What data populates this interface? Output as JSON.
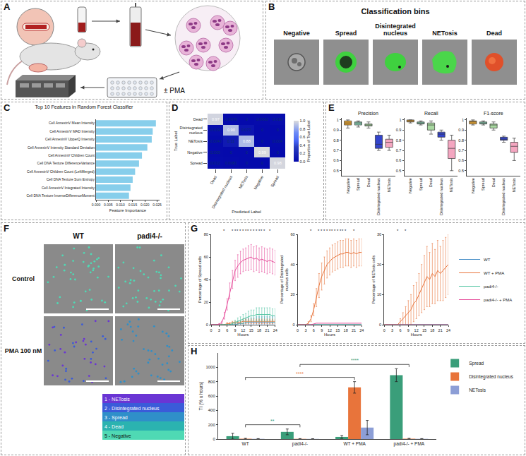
{
  "panel_letters": [
    "A",
    "B",
    "C",
    "D",
    "E",
    "F",
    "G",
    "H"
  ],
  "panel_a": {
    "label": "± PMA"
  },
  "panel_b": {
    "title": "Classification bins",
    "bins": [
      "Negative",
      "Spread",
      "Disintegrated nucleus",
      "NETosis",
      "Dead"
    ]
  },
  "panel_f": {
    "columns": [
      "WT",
      "padi4-/-"
    ],
    "rows": [
      "Control",
      "PMA 100 nM"
    ],
    "legend": [
      {
        "label": "1 - NETosis",
        "color": "#6a35d4"
      },
      {
        "label": "2 - Disintegrated nucleus",
        "color": "#3a5bd9"
      },
      {
        "label": "3 - Spread",
        "color": "#2f8fc9"
      },
      {
        "label": "4 - Dead",
        "color": "#2bb3b0"
      },
      {
        "label": "5 - Negative",
        "color": "#4fd9b4"
      }
    ]
  },
  "chart_data": [
    {
      "type": "bar",
      "orientation": "horizontal",
      "title": "Top 10 Features in Random Forest Classifier",
      "xlabel": "Feature Importance",
      "categories": [
        "Cell AnnexinV Mean Intensity",
        "Cell AnnexinV MAD Intensity",
        "Cell AnnexinV UpperQ Intensity",
        "Cell AnnexinV Intensity Standard Deviation",
        "Cell AnnexinV Children Count",
        "Cell DNA Texture DifferenceVariance",
        "Cell AnnexinV Children Count (LeftMerged)",
        "Cell DNA Texture Sum Entropy",
        "Cell AnnexinV Integrated Intensity",
        "Cell DNA Texture InverseDifferenceMoment"
      ],
      "values": [
        0.0245,
        0.0232,
        0.0228,
        0.021,
        0.0188,
        0.0176,
        0.016,
        0.015,
        0.0141,
        0.0135
      ],
      "color": "#87ceeb",
      "xlim": [
        0,
        0.026
      ],
      "xticks": [
        {
          "value": 0,
          "label": "0.000"
        },
        {
          "value": 0.005,
          "label": "0.005"
        },
        {
          "value": 0.01,
          "label": "0.010"
        },
        {
          "value": 0.015,
          "label": "0.015"
        },
        {
          "value": 0.02,
          "label": "0.020"
        },
        {
          "value": 0.025,
          "label": "0.025"
        }
      ]
    },
    {
      "type": "heatmap",
      "xlabel": "Predicted Label",
      "ylabel": "True Label",
      "categories": [
        "Dead",
        "Disintegrated nucleus",
        "NETosis",
        "Negative",
        "Spread"
      ],
      "cells": [
        [
          0.97,
          0.0079,
          0,
          0.0063,
          0.019
        ],
        [
          0.019,
          0.9,
          0.077,
          0,
          0
        ],
        [
          0.004,
          0.11,
          0.88,
          0,
          0.004
        ],
        [
          0.009,
          0,
          0,
          0.99,
          0
        ],
        [
          0.012,
          0.0081,
          0,
          0,
          0.98
        ]
      ],
      "cell_labels": [
        [
          "0.97",
          "0.0079",
          "0",
          "0.0063",
          "0.019"
        ],
        [
          "0.019",
          "0.90",
          "0.077",
          "0",
          "0"
        ],
        [
          "0.0040",
          "0.11",
          "0.88",
          "0",
          "0.004"
        ],
        [
          "0.009",
          "0",
          "0",
          "0.99",
          "0"
        ],
        [
          "0.012",
          "0.0081",
          "0",
          "0",
          "0.98"
        ]
      ],
      "colorbar": {
        "title": "Proportion of True Label",
        "range": [
          0,
          1
        ],
        "ticks": [
          {
            "value": 0,
            "label": "0.0"
          },
          {
            "value": 0.2,
            "label": "0.2"
          },
          {
            "value": 0.4,
            "label": "0.4"
          },
          {
            "value": 0.6,
            "label": "0.6"
          },
          {
            "value": 0.8,
            "label": "0.8"
          },
          {
            "value": 1,
            "label": "1.0"
          }
        ]
      }
    },
    {
      "type": "box",
      "title": "Precision",
      "categories": [
        "Negative",
        "Spread",
        "Dead",
        "Disintegrated nucleus",
        "NETosis"
      ],
      "colors": [
        "#e0a030",
        "#88ccb0",
        "#a8d8a0",
        "#3344cc",
        "#f4a6c0"
      ],
      "q1": [
        0.95,
        0.95,
        0.94,
        0.72,
        0.73
      ],
      "median": [
        0.97,
        0.97,
        0.95,
        0.76,
        0.78
      ],
      "q3": [
        0.99,
        0.98,
        0.96,
        0.85,
        0.81
      ],
      "lower": [
        0.92,
        0.93,
        0.92,
        0.7,
        0.7
      ],
      "upper": [
        1.0,
        0.99,
        0.98,
        0.88,
        0.85
      ],
      "ylim": [
        0.45,
        1.02
      ],
      "yticks": [
        0.5,
        0.6,
        0.7,
        0.8,
        0.9,
        1.0
      ]
    },
    {
      "type": "box",
      "title": "Recall",
      "categories": [
        "Negative",
        "Spread",
        "Dead",
        "Disintegrated nucleus",
        "NETosis"
      ],
      "colors": [
        "#e0a030",
        "#88ccb0",
        "#a8d8a0",
        "#3344cc",
        "#f4a6c0"
      ],
      "q1": [
        0.98,
        0.96,
        0.9,
        0.83,
        0.62
      ],
      "median": [
        0.99,
        0.97,
        0.95,
        0.86,
        0.72
      ],
      "q3": [
        1.0,
        0.98,
        0.97,
        0.88,
        0.8
      ],
      "lower": [
        0.97,
        0.95,
        0.86,
        0.8,
        0.5
      ],
      "upper": [
        1.0,
        0.99,
        0.99,
        0.9,
        0.85
      ],
      "ylim": [
        0.45,
        1.02
      ],
      "yticks": [
        0.5,
        0.6,
        0.7,
        0.8,
        0.9,
        1.0
      ]
    },
    {
      "type": "box",
      "title": "F1-score",
      "categories": [
        "Negative",
        "Spread",
        "Dead",
        "Disintegrated nucleus",
        "NETosis"
      ],
      "colors": [
        "#e0a030",
        "#88ccb0",
        "#a8d8a0",
        "#3344cc",
        "#f4a6c0"
      ],
      "q1": [
        0.96,
        0.96,
        0.92,
        0.8,
        0.68
      ],
      "median": [
        0.98,
        0.97,
        0.95,
        0.81,
        0.74
      ],
      "q3": [
        0.99,
        0.98,
        0.96,
        0.83,
        0.78
      ],
      "lower": [
        0.95,
        0.95,
        0.9,
        0.78,
        0.6
      ],
      "upper": [
        1.0,
        0.99,
        0.98,
        0.84,
        0.82
      ],
      "ylim": [
        0.45,
        1.02
      ],
      "yticks": [
        0.5,
        0.6,
        0.7,
        0.8,
        0.9,
        1.0
      ]
    },
    {
      "type": "line",
      "xlabel": "Hours",
      "ylabel": "Percentage of Spread cells",
      "x": [
        0,
        1,
        2,
        3,
        4,
        5,
        6,
        7,
        8,
        9,
        10,
        11,
        12,
        13,
        14,
        15,
        16,
        17,
        18,
        19,
        20,
        21,
        22,
        23,
        24
      ],
      "xlim": [
        0,
        24
      ],
      "xticks": [
        0,
        3,
        6,
        9,
        12,
        15,
        18,
        21,
        24
      ],
      "ylim": [
        0,
        80
      ],
      "yticks": [
        0,
        20,
        40,
        60,
        80
      ],
      "series": [
        {
          "name": "WT",
          "color": "#4a90c8",
          "values": [
            0,
            0,
            0,
            0,
            0,
            0,
            0,
            0,
            0,
            0,
            1,
            1,
            1,
            2,
            2,
            2,
            2,
            2,
            2,
            2,
            2,
            2,
            2,
            2,
            2
          ],
          "error": [
            0,
            0,
            0,
            0,
            0,
            0,
            0,
            0,
            0,
            1,
            2,
            2,
            3,
            3,
            4,
            4,
            4,
            5,
            5,
            5,
            5,
            5,
            5,
            5,
            5
          ]
        },
        {
          "name": "WT + PMA",
          "color": "#e8743b",
          "values": [
            0,
            0,
            0,
            0,
            0,
            0,
            1,
            1,
            2,
            2,
            2,
            2,
            3,
            3,
            3,
            3,
            3,
            3,
            3,
            3,
            3,
            3,
            3,
            3,
            3
          ],
          "error": [
            0,
            0,
            0,
            0,
            0,
            0,
            1,
            1,
            1,
            1,
            1,
            1,
            2,
            2,
            2,
            2,
            2,
            2,
            2,
            2,
            2,
            2,
            2,
            2,
            2
          ]
        },
        {
          "name": "padi4-/-",
          "color": "#4fc3a1",
          "values": [
            0,
            0,
            0,
            0,
            0,
            0,
            0,
            0,
            1,
            2,
            3,
            4,
            5,
            6,
            7,
            8,
            8,
            9,
            9,
            9,
            9,
            9,
            9,
            8,
            8
          ],
          "error": [
            0,
            0,
            0,
            0,
            0,
            0,
            0,
            0,
            1,
            2,
            3,
            3,
            4,
            4,
            5,
            5,
            5,
            6,
            6,
            6,
            6,
            6,
            6,
            6,
            6
          ]
        },
        {
          "name": "padi4-/- + PMA",
          "color": "#e64b9a",
          "values": [
            0,
            0,
            0,
            0.5,
            2,
            8,
            18,
            30,
            40,
            48,
            52,
            55,
            57,
            58,
            59,
            60,
            58,
            59,
            57,
            58,
            57,
            56,
            57,
            56,
            55
          ],
          "error": [
            0,
            0,
            0,
            0.5,
            1,
            3,
            5,
            7,
            8,
            9,
            10,
            10,
            10,
            10,
            11,
            11,
            11,
            11,
            11,
            11,
            11,
            11,
            11,
            11,
            11
          ]
        }
      ],
      "significance": {
        "label": "*",
        "x": [
          5,
          8,
          9,
          10,
          11,
          12,
          13,
          14,
          15,
          16,
          17,
          18,
          19,
          20,
          22
        ]
      }
    },
    {
      "type": "line",
      "xlabel": "Hours",
      "ylabel": "Percentage of Disintegrated nucleus cells",
      "x": [
        0,
        1,
        2,
        3,
        4,
        5,
        6,
        7,
        8,
        9,
        10,
        11,
        12,
        13,
        14,
        15,
        16,
        17,
        18,
        19,
        20,
        21,
        22,
        23,
        24
      ],
      "xlim": [
        0,
        24
      ],
      "xticks": [
        0,
        3,
        6,
        9,
        12,
        15,
        18,
        21,
        24
      ],
      "ylim": [
        0,
        60
      ],
      "yticks": [
        0,
        20,
        40,
        60
      ],
      "series": [
        {
          "name": "WT",
          "color": "#4a90c8",
          "values": [
            0,
            0,
            0,
            0,
            0,
            0,
            0,
            0,
            0,
            0,
            0,
            0,
            0,
            0,
            0,
            0,
            0,
            0,
            0,
            0,
            0,
            0,
            0,
            0,
            0
          ]
        },
        {
          "name": "WT + PMA",
          "color": "#e8743b",
          "values": [
            0,
            0,
            0,
            0,
            1,
            4,
            10,
            18,
            26,
            32,
            36,
            40,
            42,
            44,
            45,
            46,
            47,
            47,
            48,
            48,
            47,
            48,
            47,
            48,
            48
          ],
          "error": [
            0,
            0,
            0,
            0,
            1,
            2,
            4,
            6,
            8,
            9,
            9,
            9,
            9,
            9,
            9,
            9,
            9,
            9,
            9,
            9,
            9,
            9,
            9,
            9,
            9
          ]
        },
        {
          "name": "padi4-/-",
          "color": "#4fc3a1",
          "values": [
            0,
            0,
            0,
            0,
            0,
            0,
            0,
            0,
            0,
            0,
            0,
            0,
            0,
            0,
            0,
            0,
            0,
            0,
            0,
            0,
            0,
            0,
            0,
            0,
            0
          ]
        },
        {
          "name": "padi4-/- + PMA",
          "color": "#e64b9a",
          "values": [
            0,
            0,
            0,
            0,
            0,
            0,
            0.5,
            1,
            1,
            1,
            1,
            1,
            1,
            1,
            1,
            1,
            1,
            1,
            1,
            1,
            1,
            1,
            1,
            1,
            1
          ]
        }
      ],
      "significance": {
        "label": "*",
        "x": [
          5,
          8,
          9,
          10,
          11,
          12,
          13,
          14,
          15,
          16,
          17,
          18,
          21
        ]
      }
    },
    {
      "type": "line",
      "xlabel": "Hours",
      "ylabel": "Percentage of NETosis cells",
      "x": [
        0,
        1,
        2,
        3,
        4,
        5,
        6,
        7,
        8,
        9,
        10,
        11,
        12,
        13,
        14,
        15,
        16,
        17,
        18,
        19,
        20,
        21,
        22,
        23,
        24
      ],
      "xlim": [
        0,
        24
      ],
      "xticks": [
        0,
        3,
        6,
        9,
        12,
        15,
        18,
        21,
        24
      ],
      "ylim": [
        0,
        30
      ],
      "yticks": [
        0,
        10,
        20,
        30
      ],
      "legend": "right",
      "series": [
        {
          "name": "WT",
          "color": "#4a90c8",
          "values": [
            0,
            0,
            0,
            0,
            0,
            0,
            0,
            0,
            0,
            0,
            0,
            0,
            0,
            0,
            0,
            0,
            0,
            0,
            0,
            0,
            0,
            0,
            0,
            0,
            0
          ]
        },
        {
          "name": "WT + PMA",
          "color": "#e8743b",
          "values": [
            0,
            0,
            0,
            0,
            0,
            0,
            1,
            2,
            3,
            4,
            5,
            7,
            8,
            10,
            12,
            14,
            16,
            15,
            17,
            16,
            18,
            17,
            18,
            19,
            20
          ],
          "error": [
            0,
            0,
            0,
            0,
            0,
            0,
            1,
            2,
            3,
            4,
            5,
            6,
            6,
            7,
            8,
            9,
            10,
            9,
            10,
            9,
            10,
            9,
            10,
            10,
            10
          ]
        },
        {
          "name": "padi4-/-",
          "color": "#4fc3a1",
          "values": [
            0,
            0,
            0,
            0,
            0,
            0,
            0,
            0,
            0,
            0,
            0,
            0,
            0,
            0,
            0,
            0,
            0,
            0,
            0,
            0,
            0,
            0,
            0,
            0,
            0
          ]
        },
        {
          "name": "padi4-/- + PMA",
          "color": "#e64b9a",
          "values": [
            0,
            0,
            0,
            0,
            0,
            0,
            0,
            0,
            0,
            0,
            0,
            0,
            0,
            0,
            0,
            0,
            0,
            0,
            0,
            0,
            0,
            0,
            0,
            0,
            0
          ]
        }
      ],
      "significance": {
        "label": "*",
        "x": [
          5,
          8
        ]
      }
    },
    {
      "type": "bar",
      "ylabel": "TI (% x hours)",
      "categories": [
        "WT",
        "padi4-/-",
        "WT + PMA",
        "padi4-/- + PMA"
      ],
      "ylim": [
        0,
        1200
      ],
      "yticks": [
        0,
        200,
        400,
        600,
        800,
        1000
      ],
      "legend": "right",
      "series": [
        {
          "name": "Spread",
          "color": "#3a9e7a",
          "values": [
            40,
            100,
            30,
            890
          ],
          "error": [
            40,
            40,
            20,
            90
          ]
        },
        {
          "name": "Disintegrated nucleus",
          "color": "#e8743b",
          "values": [
            5,
            3,
            720,
            5
          ],
          "error": [
            5,
            3,
            80,
            5
          ]
        },
        {
          "name": "NETosis",
          "color": "#8c9ed6",
          "values": [
            3,
            2,
            160,
            3
          ],
          "error": [
            3,
            2,
            100,
            3
          ]
        }
      ],
      "comparisons": [
        {
          "a": 0,
          "b": 1,
          "label": "**",
          "color": "#3a9e7a"
        },
        {
          "a": 0,
          "b": 2,
          "label": "****",
          "color": "#e8743b"
        },
        {
          "a": 1,
          "b": 3,
          "label": "****",
          "color": "#3a9e7a"
        }
      ]
    }
  ]
}
